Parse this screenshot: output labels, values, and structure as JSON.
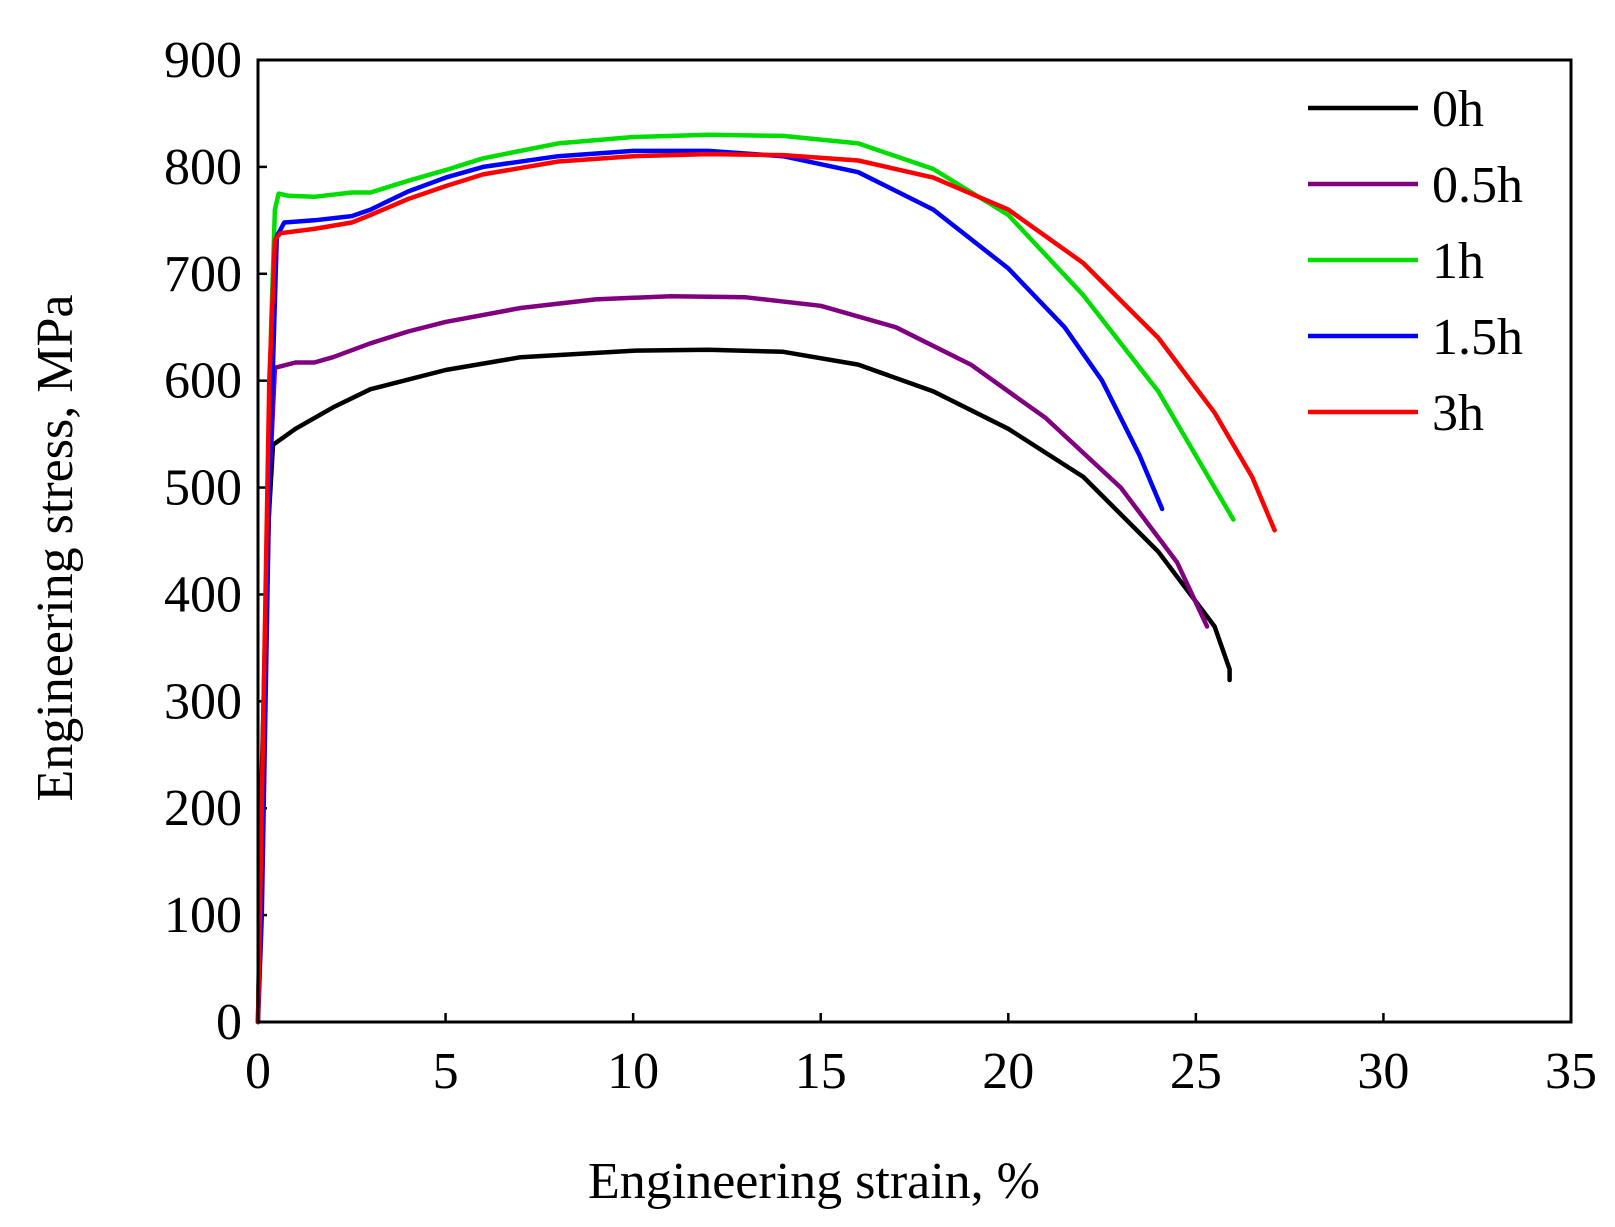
{
  "chart_data": {
    "type": "line",
    "title": "",
    "xlabel": "Engineering strain, %",
    "ylabel": "Engineering stress, MPa",
    "xlim": [
      0,
      35
    ],
    "ylim": [
      0,
      900
    ],
    "x_ticks": [
      0,
      5,
      10,
      15,
      20,
      25,
      30,
      35
    ],
    "y_ticks": [
      0,
      100,
      200,
      300,
      400,
      500,
      600,
      700,
      800,
      900
    ],
    "legend_position": "top-right",
    "series": [
      {
        "name": "0h",
        "color": "#000000",
        "points": [
          [
            0,
            0
          ],
          [
            0.1,
            230
          ],
          [
            0.25,
            450
          ],
          [
            0.4,
            540
          ],
          [
            1,
            555
          ],
          [
            2,
            575
          ],
          [
            3,
            592
          ],
          [
            5,
            610
          ],
          [
            7,
            622
          ],
          [
            10,
            628
          ],
          [
            12,
            629
          ],
          [
            14,
            627
          ],
          [
            16,
            615
          ],
          [
            18,
            590
          ],
          [
            20,
            555
          ],
          [
            22,
            510
          ],
          [
            24,
            440
          ],
          [
            25.5,
            370
          ],
          [
            25.9,
            330
          ],
          [
            25.9,
            320
          ]
        ]
      },
      {
        "name": "0.5h",
        "color": "#800080",
        "points": [
          [
            0,
            0
          ],
          [
            0.15,
            250
          ],
          [
            0.3,
            500
          ],
          [
            0.45,
            612
          ],
          [
            1,
            617
          ],
          [
            1.5,
            617
          ],
          [
            2,
            622
          ],
          [
            3,
            635
          ],
          [
            4,
            646
          ],
          [
            5,
            655
          ],
          [
            7,
            668
          ],
          [
            9,
            676
          ],
          [
            11,
            679
          ],
          [
            13,
            678
          ],
          [
            15,
            670
          ],
          [
            17,
            650
          ],
          [
            19,
            615
          ],
          [
            21,
            565
          ],
          [
            23,
            500
          ],
          [
            24.5,
            430
          ],
          [
            25.3,
            370
          ]
        ]
      },
      {
        "name": "1h",
        "color": "#00dd00",
        "points": [
          [
            0,
            0
          ],
          [
            0.2,
            350
          ],
          [
            0.35,
            650
          ],
          [
            0.45,
            760
          ],
          [
            0.55,
            775
          ],
          [
            0.8,
            773
          ],
          [
            1.5,
            772
          ],
          [
            2.5,
            776
          ],
          [
            3,
            776
          ],
          [
            4,
            787
          ],
          [
            5,
            797
          ],
          [
            6,
            808
          ],
          [
            8,
            822
          ],
          [
            10,
            828
          ],
          [
            12,
            830
          ],
          [
            14,
            829
          ],
          [
            16,
            822
          ],
          [
            18,
            798
          ],
          [
            20,
            755
          ],
          [
            22,
            680
          ],
          [
            24,
            590
          ],
          [
            25.5,
            500
          ],
          [
            26,
            470
          ]
        ]
      },
      {
        "name": "1.5h",
        "color": "#0000ff",
        "points": [
          [
            0,
            0
          ],
          [
            0.1,
            100
          ],
          [
            0.3,
            500
          ],
          [
            0.5,
            735
          ],
          [
            0.7,
            748
          ],
          [
            1.5,
            750
          ],
          [
            2.5,
            754
          ],
          [
            3,
            760
          ],
          [
            4,
            777
          ],
          [
            5,
            790
          ],
          [
            6,
            800
          ],
          [
            8,
            810
          ],
          [
            10,
            815
          ],
          [
            12,
            815
          ],
          [
            14,
            810
          ],
          [
            16,
            795
          ],
          [
            18,
            760
          ],
          [
            20,
            705
          ],
          [
            21.5,
            650
          ],
          [
            22.5,
            600
          ],
          [
            23.5,
            530
          ],
          [
            24.1,
            480
          ]
        ]
      },
      {
        "name": "3h",
        "color": "#ff0000",
        "points": [
          [
            0,
            0
          ],
          [
            0.15,
            300
          ],
          [
            0.3,
            600
          ],
          [
            0.45,
            732
          ],
          [
            0.6,
            738
          ],
          [
            1.5,
            742
          ],
          [
            2.5,
            748
          ],
          [
            3,
            755
          ],
          [
            4,
            770
          ],
          [
            5,
            782
          ],
          [
            6,
            793
          ],
          [
            8,
            805
          ],
          [
            10,
            810
          ],
          [
            12,
            812
          ],
          [
            14,
            811
          ],
          [
            16,
            806
          ],
          [
            18,
            790
          ],
          [
            20,
            760
          ],
          [
            22,
            710
          ],
          [
            24,
            640
          ],
          [
            25.5,
            570
          ],
          [
            26.5,
            510
          ],
          [
            27.1,
            460
          ]
        ]
      }
    ]
  }
}
